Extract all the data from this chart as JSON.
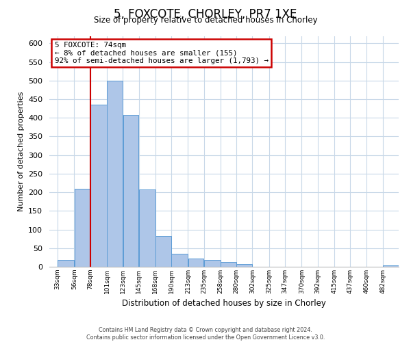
{
  "title": "5, FOXCOTE, CHORLEY, PR7 1XE",
  "subtitle": "Size of property relative to detached houses in Chorley",
  "xlabel": "Distribution of detached houses by size in Chorley",
  "ylabel": "Number of detached properties",
  "footer_line1": "Contains HM Land Registry data © Crown copyright and database right 2024.",
  "footer_line2": "Contains public sector information licensed under the Open Government Licence v3.0.",
  "bin_labels": [
    "33sqm",
    "56sqm",
    "78sqm",
    "101sqm",
    "123sqm",
    "145sqm",
    "168sqm",
    "190sqm",
    "213sqm",
    "235sqm",
    "258sqm",
    "280sqm",
    "302sqm",
    "325sqm",
    "347sqm",
    "370sqm",
    "392sqm",
    "415sqm",
    "437sqm",
    "460sqm",
    "482sqm"
  ],
  "bar_values": [
    18,
    210,
    435,
    500,
    408,
    208,
    83,
    35,
    22,
    18,
    13,
    7,
    0,
    0,
    0,
    0,
    0,
    0,
    0,
    0,
    3
  ],
  "bar_color": "#aec6e8",
  "bar_edge_color": "#5b9bd5",
  "marker_x_label": "78sqm",
  "marker_label": "5 FOXCOTE: 74sqm",
  "annotation_line1": "← 8% of detached houses are smaller (155)",
  "annotation_line2": "92% of semi-detached houses are larger (1,793) →",
  "marker_line_color": "#cc0000",
  "annotation_box_edge_color": "#cc0000",
  "ylim": [
    0,
    620
  ],
  "yticks": [
    0,
    50,
    100,
    150,
    200,
    250,
    300,
    350,
    400,
    450,
    500,
    550,
    600
  ],
  "background_color": "#ffffff",
  "grid_color": "#c8d8e8"
}
